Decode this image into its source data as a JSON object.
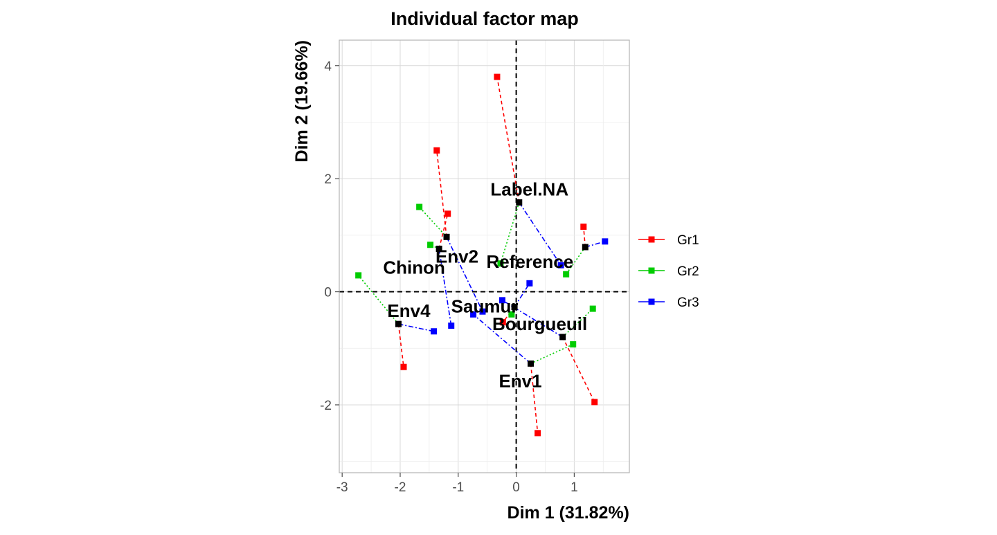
{
  "chart_data": {
    "type": "scatter",
    "title": "Individual factor map",
    "xlabel": "Dim 1 (31.82%)",
    "ylabel": "Dim 2 (19.66%)",
    "xlim": [
      -3.05,
      1.95
    ],
    "ylim": [
      -3.2,
      4.45
    ],
    "xticks": [
      -3,
      -2,
      -1,
      0,
      1
    ],
    "yticks": [
      -2,
      0,
      2,
      4
    ],
    "grid": true,
    "reference_lines": {
      "x": 0,
      "y": 0,
      "style": "dashed"
    },
    "legend_position": "right",
    "legend": [
      {
        "name": "Gr1",
        "color": "#ff0000"
      },
      {
        "name": "Gr2",
        "color": "#00cc00"
      },
      {
        "name": "Gr3",
        "color": "#0000ff"
      }
    ],
    "centers_color": "#000000",
    "individuals": [
      {
        "name": "Label.NA",
        "center": [
          0.05,
          1.58
        ],
        "Gr1": [
          -0.33,
          3.8
        ],
        "Gr2": [
          -0.27,
          0.5
        ],
        "Gr3": [
          0.77,
          0.47
        ]
      },
      {
        "name": "Env2",
        "center": [
          -1.2,
          0.97
        ],
        "Gr1": [
          -1.37,
          2.5
        ],
        "Gr2": [
          -1.67,
          1.5
        ],
        "Gr3": [
          -0.58,
          -0.35
        ]
      },
      {
        "name": "Reference",
        "center": [
          1.19,
          0.79
        ],
        "Gr1": [
          1.16,
          1.15
        ],
        "Gr2": [
          0.86,
          0.31
        ],
        "Gr3": [
          1.53,
          0.89
        ]
      },
      {
        "name": "Chinon",
        "center": [
          -1.33,
          0.76
        ],
        "Gr1": [
          -1.18,
          1.38
        ],
        "Gr2": [
          -1.48,
          0.83
        ],
        "Gr3": [
          -1.12,
          -0.6
        ]
      },
      {
        "name": "Saumur",
        "center": [
          -0.03,
          -0.27
        ],
        "Gr1": [
          -0.23,
          -0.54
        ],
        "Gr2": [
          -0.08,
          -0.4
        ],
        "Gr3": [
          0.23,
          0.15
        ]
      },
      {
        "name": "Env4",
        "center": [
          -2.03,
          -0.57
        ],
        "Gr1": [
          -1.94,
          -1.33
        ],
        "Gr2": [
          -2.72,
          0.29
        ],
        "Gr3": [
          -1.42,
          -0.7
        ]
      },
      {
        "name": "Bourgueuil",
        "center": [
          0.8,
          -0.8
        ],
        "Gr1": [
          1.35,
          -1.95
        ],
        "Gr2": [
          1.32,
          -0.3
        ],
        "Gr3": [
          -0.24,
          -0.15
        ]
      },
      {
        "name": "Env1",
        "center": [
          0.25,
          -1.27
        ],
        "Gr1": [
          0.37,
          -2.5
        ],
        "Gr2": [
          0.98,
          -0.93
        ],
        "Gr3": [
          -0.74,
          -0.4
        ]
      }
    ]
  }
}
